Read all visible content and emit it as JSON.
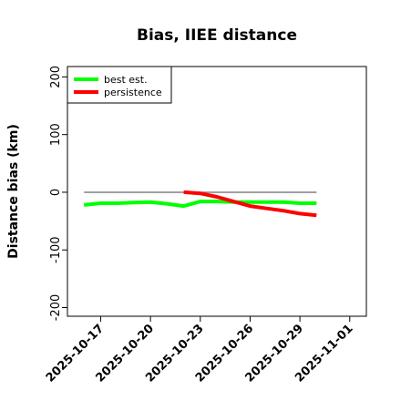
{
  "chart_data": {
    "type": "line",
    "title": "Bias, IIEE distance",
    "xlabel": "",
    "ylabel": "Distance bias (km)",
    "xlim": [
      "2025-10-15",
      "2025-11-02"
    ],
    "ylim": [
      -215,
      218
    ],
    "x_ticks": [
      "2025-10-17",
      "2025-10-20",
      "2025-10-23",
      "2025-10-26",
      "2025-10-29",
      "2025-11-01"
    ],
    "y_ticks": [
      -200,
      -100,
      0,
      100,
      200
    ],
    "grid": false,
    "legend_position": "top-left",
    "reference_line": {
      "y": 0,
      "x": [
        "2025-10-16",
        "2025-10-30"
      ],
      "color": "#808080"
    },
    "series": [
      {
        "name": "best est.",
        "color": "#00ff00",
        "x": [
          "2025-10-16",
          "2025-10-17",
          "2025-10-18",
          "2025-10-19",
          "2025-10-20",
          "2025-10-21",
          "2025-10-22",
          "2025-10-23",
          "2025-10-24",
          "2025-10-25",
          "2025-10-26",
          "2025-10-27",
          "2025-10-28",
          "2025-10-29",
          "2025-10-30"
        ],
        "y": [
          -22,
          -19,
          -19,
          -18,
          -17,
          -20,
          -24,
          -16,
          -16,
          -17,
          -17,
          -17,
          -17,
          -19,
          -19
        ]
      },
      {
        "name": "persistence",
        "color": "#ff0000",
        "x": [
          "2025-10-22",
          "2025-10-23",
          "2025-10-24",
          "2025-10-25",
          "2025-10-26",
          "2025-10-27",
          "2025-10-28",
          "2025-10-29",
          "2025-10-30"
        ],
        "y": [
          0,
          -2,
          -8,
          -16,
          -24,
          -28,
          -32,
          -37,
          -40
        ]
      }
    ]
  }
}
